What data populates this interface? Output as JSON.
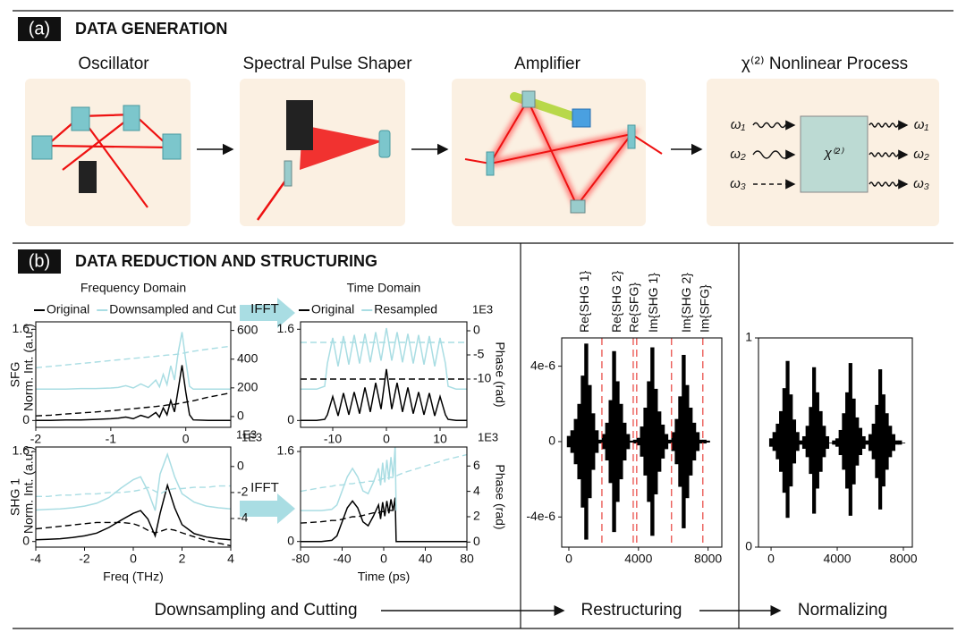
{
  "figure": {
    "panel_a": {
      "label": "(a)",
      "title": "DATA GENERATION",
      "stages": [
        "Oscillator",
        "Spectral Pulse Shaper",
        "Amplifier",
        "χ⁽²⁾ Nonlinear Process"
      ],
      "process": {
        "symbol": "χ⁽²⁾",
        "inputs": [
          "ω₁",
          "ω₂",
          "ω₃"
        ],
        "outputs": [
          "ω₁",
          "ω₂",
          "ω₃"
        ]
      }
    },
    "panel_b": {
      "label": "(b)",
      "title": "DATA REDUCTION AND STRUCTURING",
      "transform": [
        "IFFT",
        "IFFT"
      ],
      "steps": [
        "Downsampling and Cutting",
        "Restructuring",
        "Normalizing"
      ]
    }
  },
  "chart_data": [
    {
      "type": "line",
      "title": "Frequency Domain",
      "row_label": "SFG",
      "ylabel": "Norm. Int. (a.u.)",
      "x_offset": "1E3",
      "legend": "top",
      "xlim": [
        -2,
        0.6
      ],
      "ylim": [
        -0.12,
        1.73
      ],
      "y2lim": [
        -75,
        660
      ],
      "xticks": [
        -2,
        -1,
        0
      ],
      "yticks": [
        0,
        1.6
      ],
      "y2ticks": [
        0,
        200,
        400,
        600
      ],
      "x": [
        -2,
        -1.8,
        -1.6,
        -1.4,
        -1.2,
        -1.0,
        -0.9,
        -0.8,
        -0.7,
        -0.6,
        -0.5,
        -0.4,
        -0.35,
        -0.3,
        -0.25,
        -0.2,
        -0.15,
        -0.1,
        -0.05,
        0,
        0.05,
        0.1,
        0.3,
        0.6
      ],
      "series": [
        {
          "name": "Original",
          "color": "#000000",
          "values": [
            0,
            0,
            0.01,
            0.01,
            0.02,
            0.03,
            0.04,
            0.06,
            0.03,
            0.09,
            0.05,
            0.14,
            0.06,
            0.22,
            0.1,
            0.35,
            0.15,
            0.55,
            0.97,
            0.5,
            0.1,
            0.01,
            0,
            0
          ]
        },
        {
          "name": "Downsampled and Cut",
          "color": "#a9dde3",
          "values": [
            0.55,
            0.55,
            0.55,
            0.56,
            0.56,
            0.57,
            0.58,
            0.61,
            0.57,
            0.64,
            0.58,
            0.71,
            0.59,
            0.81,
            0.63,
            0.96,
            0.71,
            1.2,
            1.55,
            1.05,
            0.6,
            0.55,
            0.55,
            0.55
          ]
        },
        {
          "name": "Original",
          "color": "#000000",
          "axis": "y2",
          "dash": true,
          "values": [
            5,
            10,
            18,
            25,
            32,
            40,
            45,
            50,
            55,
            60,
            65,
            70,
            73,
            76,
            80,
            83,
            86,
            90,
            95,
            100,
            105,
            110,
            135,
            165
          ]
        },
        {
          "name": "Downsampled and Cut",
          "color": "#a9dde3",
          "axis": "y2",
          "dash": true,
          "values": [
            340,
            350,
            360,
            370,
            380,
            390,
            395,
            400,
            405,
            410,
            415,
            420,
            423,
            425,
            428,
            430,
            432,
            435,
            440,
            445,
            450,
            455,
            470,
            490
          ]
        }
      ]
    },
    {
      "type": "line",
      "title": "Time Domain",
      "y2label": "Phase (rad)",
      "y2_offset": "1E3",
      "x_offset": "1E3",
      "legend": "top",
      "xlim": [
        -16,
        15
      ],
      "ylim": [
        -0.12,
        1.73
      ],
      "y2lim": [
        -20,
        1.85
      ],
      "xticks": [
        -10,
        0,
        10
      ],
      "yticks": [
        0,
        1.6
      ],
      "y2ticks": [
        0,
        -5,
        -10
      ],
      "x": [
        -16,
        -13,
        -11.5,
        -11,
        -10,
        -9,
        -8,
        -7,
        -6,
        -5,
        -4,
        -3,
        -2,
        -1,
        0,
        1,
        2,
        3,
        4,
        5,
        6,
        7,
        8,
        9,
        10,
        11,
        11.5,
        13,
        15
      ],
      "series": [
        {
          "name": "Original",
          "color": "#000000",
          "values": [
            0,
            0,
            0.02,
            0.1,
            0.42,
            0.08,
            0.48,
            0.1,
            0.5,
            0.12,
            0.58,
            0.15,
            0.66,
            0.2,
            0.9,
            0.2,
            0.66,
            0.15,
            0.58,
            0.12,
            0.5,
            0.1,
            0.48,
            0.08,
            0.42,
            0.1,
            0.02,
            0,
            0
          ]
        },
        {
          "name": "Resampled",
          "color": "#a9dde3",
          "values": [
            0.55,
            0.55,
            0.6,
            1.0,
            1.45,
            0.95,
            1.48,
            0.98,
            1.5,
            1.0,
            1.52,
            1.02,
            1.55,
            1.05,
            1.62,
            1.05,
            1.55,
            1.02,
            1.52,
            1.0,
            1.5,
            0.98,
            1.48,
            0.95,
            1.45,
            1.0,
            0.6,
            0.55,
            0.55
          ]
        },
        {
          "name": "Original",
          "color": "#000000",
          "axis": "y2",
          "dash": true,
          "values": [
            -10,
            -10,
            -10,
            -10,
            -10,
            -10,
            -10,
            -10,
            -10,
            -10,
            -10,
            -10,
            -10,
            -10,
            -10,
            -10,
            -10,
            -10,
            -10,
            -10,
            -10,
            -10,
            -10,
            -10,
            -10,
            -10,
            -10,
            -10,
            -10
          ]
        },
        {
          "name": "Resampled",
          "color": "#a9dde3",
          "axis": "y2",
          "dash": true,
          "values": [
            -2.4,
            -2.4,
            -2.4,
            -2.4,
            -2.4,
            -2.4,
            -2.4,
            -2.4,
            -2.4,
            -2.4,
            -2.4,
            -2.4,
            -2.4,
            -2.4,
            -2.4,
            -2.4,
            -2.4,
            -2.4,
            -2.4,
            -2.4,
            -2.4,
            -2.4,
            -2.4,
            -2.4,
            -2.4,
            -2.4,
            -2.4,
            -2.4,
            -2.4
          ]
        }
      ]
    },
    {
      "type": "line",
      "row_label": "SHG 1",
      "ylabel": "Norm. Int. (a.u.)",
      "xlabel": "Freq (THz)",
      "y2_offset": "1E3",
      "xlim": [
        -4,
        4
      ],
      "ylim": [
        -0.1,
        1.68
      ],
      "y2lim": [
        -6.2,
        1.5
      ],
      "xticks": [
        -4,
        -2,
        0,
        2,
        4
      ],
      "yticks": [
        0,
        1.6
      ],
      "y2ticks": [
        0,
        -2,
        -4
      ],
      "x": [
        -4,
        -3.5,
        -3,
        -2.5,
        -2,
        -1.5,
        -1,
        -0.5,
        0,
        0.3,
        0.6,
        0.9,
        1.1,
        1.4,
        1.7,
        2,
        2.5,
        3,
        3.5,
        4
      ],
      "series": [
        {
          "name": "Original",
          "color": "#000000",
          "values": [
            0.03,
            0.04,
            0.05,
            0.07,
            0.1,
            0.15,
            0.25,
            0.38,
            0.5,
            0.55,
            0.4,
            0.1,
            0.5,
            1.0,
            0.6,
            0.3,
            0.14,
            0.08,
            0.05,
            0.03
          ]
        },
        {
          "name": "Downsampled and Cut",
          "color": "#a9dde3",
          "values": [
            0.56,
            0.57,
            0.58,
            0.6,
            0.63,
            0.68,
            0.78,
            0.95,
            1.1,
            1.15,
            0.9,
            0.55,
            1.2,
            1.55,
            1.15,
            0.85,
            0.7,
            0.63,
            0.6,
            0.58
          ]
        },
        {
          "name": "Original",
          "color": "#000000",
          "axis": "y2",
          "dash": true,
          "values": [
            -4.8,
            -4.7,
            -4.6,
            -4.5,
            -4.4,
            -4.3,
            -4.3,
            -4.3,
            -4.4,
            -4.6,
            -4.9,
            -5.1,
            -5.0,
            -4.8,
            -4.9,
            -5.1,
            -5.4,
            -5.7,
            -5.9,
            -6.1
          ]
        },
        {
          "name": "Downsampled and Cut",
          "color": "#a9dde3",
          "axis": "y2",
          "dash": true,
          "values": [
            -2.3,
            -2.3,
            -2.2,
            -2.2,
            -2.1,
            -2.1,
            -2.0,
            -2.0,
            -1.9,
            -1.8,
            -1.6,
            -1.9,
            -2.1,
            -1.8,
            -1.7,
            -1.7,
            -1.6,
            -1.6,
            -1.5,
            -1.5
          ]
        }
      ]
    },
    {
      "type": "line",
      "xlabel": "Time (ps)",
      "y2label": "Phase (rad)",
      "xlim": [
        -80,
        80
      ],
      "ylim": [
        -0.1,
        1.68
      ],
      "y2lim": [
        -0.4,
        7.5
      ],
      "xticks": [
        -80,
        -40,
        0,
        40,
        80
      ],
      "yticks": [
        0,
        1.6
      ],
      "y2ticks": [
        0,
        2,
        4,
        6
      ],
      "x": [
        -80,
        -60,
        -50,
        -45,
        -40,
        -35,
        -30,
        -25,
        -20,
        -15,
        -10,
        -5,
        -3,
        -1,
        1,
        3,
        5,
        7,
        9,
        11,
        12,
        14,
        20,
        40,
        60,
        80
      ],
      "series": [
        {
          "name": "Original",
          "color": "#000000",
          "values": [
            0,
            0,
            0.02,
            0.1,
            0.35,
            0.6,
            0.72,
            0.6,
            0.35,
            0.28,
            0.45,
            0.65,
            0.4,
            0.7,
            0.45,
            0.72,
            0.5,
            0.75,
            0.55,
            0.78,
            0.0,
            0,
            0,
            0,
            0,
            0
          ]
        },
        {
          "name": "Resampled",
          "color": "#a9dde3",
          "values": [
            0.55,
            0.55,
            0.57,
            0.65,
            0.9,
            1.15,
            1.3,
            1.15,
            0.9,
            0.85,
            1.05,
            1.3,
            1.0,
            1.4,
            1.05,
            1.45,
            1.1,
            1.5,
            1.15,
            1.7,
            0.55,
            null,
            null,
            null,
            null,
            null
          ]
        },
        {
          "name": "Original",
          "color": "#000000",
          "axis": "y2",
          "dash": true,
          "values": [
            1.5,
            1.6,
            1.7,
            1.7,
            1.8,
            1.9,
            2.0,
            2.0,
            2.1,
            2.2,
            2.3,
            2.3,
            2.4,
            2.4,
            2.4,
            2.5,
            2.5,
            2.5,
            2.5,
            2.5,
            2.5,
            null,
            null,
            null,
            null,
            null
          ]
        },
        {
          "name": "Resampled",
          "color": "#a9dde3",
          "axis": "y2",
          "dash": true,
          "values": [
            4.0,
            4.3,
            4.4,
            4.5,
            4.5,
            4.6,
            4.6,
            4.7,
            4.7,
            4.8,
            4.8,
            4.9,
            4.9,
            5.0,
            5.0,
            5.0,
            5.1,
            5.1,
            5.1,
            5.2,
            5.2,
            5.3,
            5.5,
            6.0,
            6.5,
            6.9
          ]
        }
      ]
    },
    {
      "type": "signal",
      "color": "#000000",
      "divider_color": "#e8413c",
      "segments": [
        "Re{SHG 1}",
        "Re{SHG 2}",
        "Re{SFG}",
        "Im{SHG 1}",
        "Im{SHG 2}",
        "Im{SFG}"
      ],
      "dividers": [
        1900,
        3700,
        3900,
        5900,
        7700
      ],
      "xlim": [
        -410,
        8790
      ],
      "ylim": [
        -5.6e-06,
        5.5e-06
      ],
      "xticks": [
        0,
        4000,
        8000
      ],
      "yticks": [
        {
          "value": 4e-06,
          "label": "4e-6"
        },
        0,
        {
          "value": -4e-06,
          "label": "-4e-6"
        }
      ],
      "x": [
        0,
        200,
        400,
        600,
        800,
        1000,
        1200,
        1400,
        1600,
        1800,
        2000,
        2200,
        2400,
        2600,
        2800,
        3000,
        3200,
        3400,
        3600,
        3800,
        4000,
        4200,
        4400,
        4600,
        4800,
        5000,
        5200,
        5400,
        5600,
        5800,
        6000,
        6200,
        6400,
        6600,
        6800,
        7000,
        7200,
        7400,
        7600,
        7800,
        8000
      ],
      "values": [
        3e-07,
        6e-07,
        1.2e-06,
        2e-06,
        3.5e-06,
        5.2e-06,
        3e-06,
        1.5e-06,
        6e-07,
        1e-07,
        4e-07,
        1e-06,
        2.2e-06,
        4.8e-06,
        3.2e-06,
        2e-06,
        1e-06,
        4e-07,
        5e-08,
        1e-07,
        2e-07,
        8e-07,
        1.8e-06,
        3.2e-06,
        5e-06,
        2.8e-06,
        1.6e-06,
        9e-07,
        4e-07,
        1e-07,
        5e-07,
        1.2e-06,
        2.4e-06,
        4.6e-06,
        3e-06,
        1.8e-06,
        1e-06,
        5e-07,
        1e-07,
        1e-07,
        5e-08
      ]
    },
    {
      "type": "range",
      "color": "#000000",
      "xlim": [
        -760,
        8540
      ],
      "ylim": [
        0,
        1
      ],
      "xticks": [
        0,
        4000,
        8000
      ],
      "yticks": [
        0,
        1
      ],
      "x": [
        0,
        200,
        400,
        600,
        800,
        1000,
        1200,
        1400,
        1600,
        1800,
        2000,
        2200,
        2400,
        2600,
        2800,
        3000,
        3200,
        3400,
        3600,
        3800,
        4000,
        4200,
        4400,
        4600,
        4800,
        5000,
        5200,
        5400,
        5600,
        5800,
        6000,
        6200,
        6400,
        6600,
        6800,
        7000,
        7200,
        7400,
        7600,
        7800,
        8000
      ],
      "lower": [
        0.48,
        0.46,
        0.42,
        0.36,
        0.26,
        0.14,
        0.29,
        0.4,
        0.46,
        0.49,
        0.47,
        0.43,
        0.35,
        0.16,
        0.28,
        0.36,
        0.43,
        0.47,
        0.5,
        0.49,
        0.48,
        0.44,
        0.37,
        0.28,
        0.15,
        0.3,
        0.39,
        0.44,
        0.47,
        0.49,
        0.46,
        0.42,
        0.33,
        0.18,
        0.29,
        0.37,
        0.43,
        0.46,
        0.49,
        0.49,
        0.5
      ],
      "upper": [
        0.52,
        0.55,
        0.59,
        0.65,
        0.76,
        0.89,
        0.73,
        0.61,
        0.55,
        0.51,
        0.53,
        0.58,
        0.67,
        0.86,
        0.74,
        0.65,
        0.58,
        0.53,
        0.5,
        0.51,
        0.52,
        0.56,
        0.64,
        0.74,
        0.88,
        0.71,
        0.62,
        0.57,
        0.53,
        0.51,
        0.54,
        0.59,
        0.68,
        0.85,
        0.73,
        0.64,
        0.58,
        0.54,
        0.51,
        0.51,
        0.5
      ]
    }
  ]
}
